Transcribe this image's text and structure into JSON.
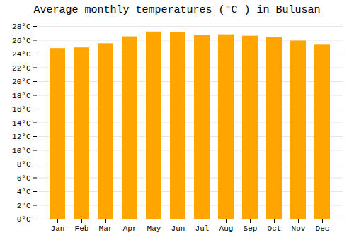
{
  "chart_data": {
    "type": "bar",
    "title": "Average monthly temperatures (°C ) in Bulusan",
    "categories": [
      "Jan",
      "Feb",
      "Mar",
      "Apr",
      "May",
      "Jun",
      "Jul",
      "Aug",
      "Sep",
      "Oct",
      "Nov",
      "Dec"
    ],
    "values": [
      24.8,
      24.9,
      25.5,
      26.5,
      27.2,
      27.1,
      26.7,
      26.8,
      26.6,
      26.4,
      25.9,
      25.3
    ],
    "color": "#FFA500",
    "ylim": [
      0,
      28
    ],
    "yticks": [
      {
        "value": 0,
        "label": "0°C"
      },
      {
        "value": 2,
        "label": "2°C"
      },
      {
        "value": 4,
        "label": "4°C"
      },
      {
        "value": 6,
        "label": "6°C"
      },
      {
        "value": 8,
        "label": "8°C"
      },
      {
        "value": 10,
        "label": "10°C"
      },
      {
        "value": 12,
        "label": "12°C"
      },
      {
        "value": 14,
        "label": "14°C"
      },
      {
        "value": 16,
        "label": "16°C"
      },
      {
        "value": 18,
        "label": "18°C"
      },
      {
        "value": 20,
        "label": "20°C"
      },
      {
        "value": 22,
        "label": "22°C"
      },
      {
        "value": 24,
        "label": "24°C"
      },
      {
        "value": 26,
        "label": "26°C"
      },
      {
        "value": 28,
        "label": "28°C"
      }
    ],
    "grid": true
  }
}
